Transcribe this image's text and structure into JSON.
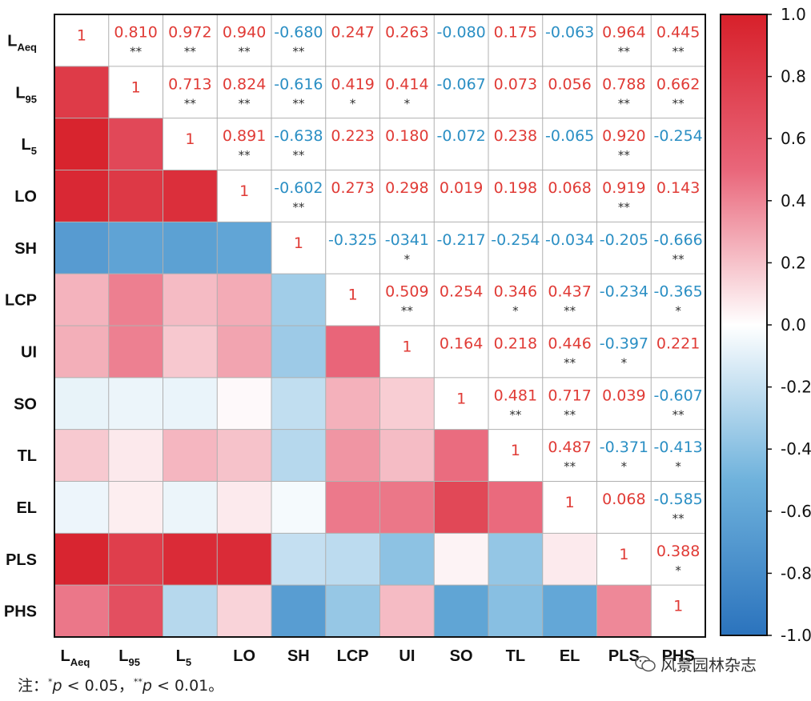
{
  "chart_data": {
    "type": "heatmap",
    "variables": [
      "L_Aeq",
      "L_95",
      "L_5",
      "LO",
      "SH",
      "LCP",
      "UI",
      "SO",
      "TL",
      "EL",
      "PLS",
      "PHS"
    ],
    "labels": [
      {
        "main": "L",
        "sub": "Aeq"
      },
      {
        "main": "L",
        "sub": "95"
      },
      {
        "main": "L",
        "sub": "5"
      },
      {
        "main": "LO",
        "sub": ""
      },
      {
        "main": "SH",
        "sub": ""
      },
      {
        "main": "LCP",
        "sub": ""
      },
      {
        "main": "UI",
        "sub": ""
      },
      {
        "main": "SO",
        "sub": ""
      },
      {
        "main": "TL",
        "sub": ""
      },
      {
        "main": "EL",
        "sub": ""
      },
      {
        "main": "PLS",
        "sub": ""
      },
      {
        "main": "PHS",
        "sub": ""
      }
    ],
    "upper_text": [
      [
        "1",
        "0.810",
        "0.972",
        "0.940",
        "-0.680",
        "0.247",
        "0.263",
        "-0.080",
        "0.175",
        "-0.063",
        "0.964",
        "0.445"
      ],
      [
        "",
        "1",
        "0.713",
        "0.824",
        "-0.616",
        "0.419",
        "0.414",
        "-0.067",
        "0.073",
        "0.056",
        "0.788",
        "0.662"
      ],
      [
        "",
        "",
        "1",
        "0.891",
        "-0.638",
        "0.223",
        "0.180",
        "-0.072",
        "0.238",
        "-0.065",
        "0.920",
        "-0.254"
      ],
      [
        "",
        "",
        "",
        "1",
        "-0.602",
        "0.273",
        "0.298",
        "0.019",
        "0.198",
        "0.068",
        "0.919",
        "0.143"
      ],
      [
        "",
        "",
        "",
        "",
        "1",
        "-0.325",
        "-0341",
        "-0.217",
        "-0.254",
        "-0.034",
        "-0.205",
        "-0.666"
      ],
      [
        "",
        "",
        "",
        "",
        "",
        "1",
        "0.509",
        "0.254",
        "0.346",
        "0.437",
        "-0.234",
        "-0.365"
      ],
      [
        "",
        "",
        "",
        "",
        "",
        "",
        "1",
        "0.164",
        "0.218",
        "0.446",
        "-0.397",
        "0.221"
      ],
      [
        "",
        "",
        "",
        "",
        "",
        "",
        "",
        "1",
        "0.481",
        "0.717",
        "0.039",
        "-0.607"
      ],
      [
        "",
        "",
        "",
        "",
        "",
        "",
        "",
        "",
        "1",
        "0.487",
        "-0.371",
        "-0.413"
      ],
      [
        "",
        "",
        "",
        "",
        "",
        "",
        "",
        "",
        "",
        "1",
        "0.068",
        "-0.585"
      ],
      [
        "",
        "",
        "",
        "",
        "",
        "",
        "",
        "",
        "",
        "",
        "1",
        "0.388"
      ],
      [
        "",
        "",
        "",
        "",
        "",
        "",
        "",
        "",
        "",
        "",
        "",
        "1"
      ]
    ],
    "significance": [
      [
        "",
        "**",
        "**",
        "**",
        "**",
        "",
        "",
        "",
        "",
        "",
        "**",
        "**"
      ],
      [
        "",
        "",
        "**",
        "**",
        "**",
        "*",
        "*",
        "",
        "",
        "",
        "**",
        "**"
      ],
      [
        "",
        "",
        "",
        "**",
        "**",
        "",
        "",
        "",
        "",
        "",
        "**",
        ""
      ],
      [
        "",
        "",
        "",
        "",
        "**",
        "",
        "",
        "",
        "",
        "",
        "**",
        ""
      ],
      [
        "",
        "",
        "",
        "",
        "",
        "",
        "*",
        "",
        "",
        "",
        "",
        "**"
      ],
      [
        "",
        "",
        "",
        "",
        "",
        "",
        "**",
        "",
        "*",
        "**",
        "",
        "*"
      ],
      [
        "",
        "",
        "",
        "",
        "",
        "",
        "",
        "",
        "",
        "**",
        "*",
        ""
      ],
      [
        "",
        "",
        "",
        "",
        "",
        "",
        "",
        "",
        "**",
        "**",
        "",
        "**"
      ],
      [
        "",
        "",
        "",
        "",
        "",
        "",
        "",
        "",
        "",
        "**",
        "*",
        "*"
      ],
      [
        "",
        "",
        "",
        "",
        "",
        "",
        "",
        "",
        "",
        "",
        "",
        "**"
      ],
      [
        "",
        "",
        "",
        "",
        "",
        "",
        "",
        "",
        "",
        "",
        "",
        "*"
      ],
      [
        "",
        "",
        "",
        "",
        "",
        "",
        "",
        "",
        "",
        "",
        "",
        ""
      ]
    ],
    "color_scale": {
      "min": -1.0,
      "max": 1.0,
      "tick_labels": [
        "1.0",
        "0.8",
        "0.6",
        "0.4",
        "0.2",
        "0.0",
        "-0.2",
        "-0.4",
        "-0.6",
        "-0.8",
        "-1.0"
      ],
      "low_color": "#2b73bd",
      "mid_color": "#ffffff",
      "high_color": "#d7202a"
    },
    "positive_text_color": "#e03b36",
    "negative_text_color": "#2b8fc4"
  },
  "note": {
    "prefix": "注：",
    "star1": "*",
    "p": "p",
    "cond1": " < 0.05，",
    "star2": "**",
    "cond2": " < 0.01。"
  },
  "watermark": {
    "text": "风景园林杂志",
    "icon": "wechat-icon"
  }
}
